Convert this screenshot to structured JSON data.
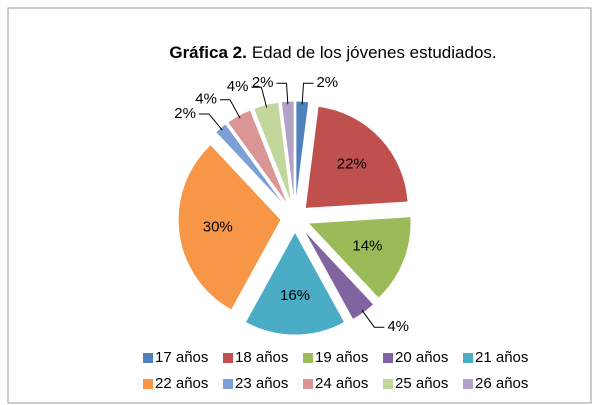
{
  "chart_data": {
    "type": "pie",
    "title": {
      "label": "Gráfica 2.",
      "text": "Edad de los jóvenes estudiados."
    },
    "categories": [
      "17 años",
      "18 años",
      "19 años",
      "20 años",
      "21 años",
      "22 años",
      "23 años",
      "24 años",
      "25 años",
      "26 años"
    ],
    "values": [
      2,
      22,
      14,
      4,
      16,
      30,
      2,
      4,
      4,
      2
    ],
    "value_labels": [
      "2%",
      "22%",
      "14%",
      "4%",
      "16%",
      "30%",
      "2%",
      "4%",
      "4%",
      "2%"
    ],
    "colors": [
      "#4f81bd",
      "#c0504d",
      "#9bbb59",
      "#8064a2",
      "#4bacc6",
      "#f79646",
      "#7b9fd6",
      "#d99694",
      "#c3d69b",
      "#b3a2c7"
    ],
    "legend": "bottom"
  }
}
